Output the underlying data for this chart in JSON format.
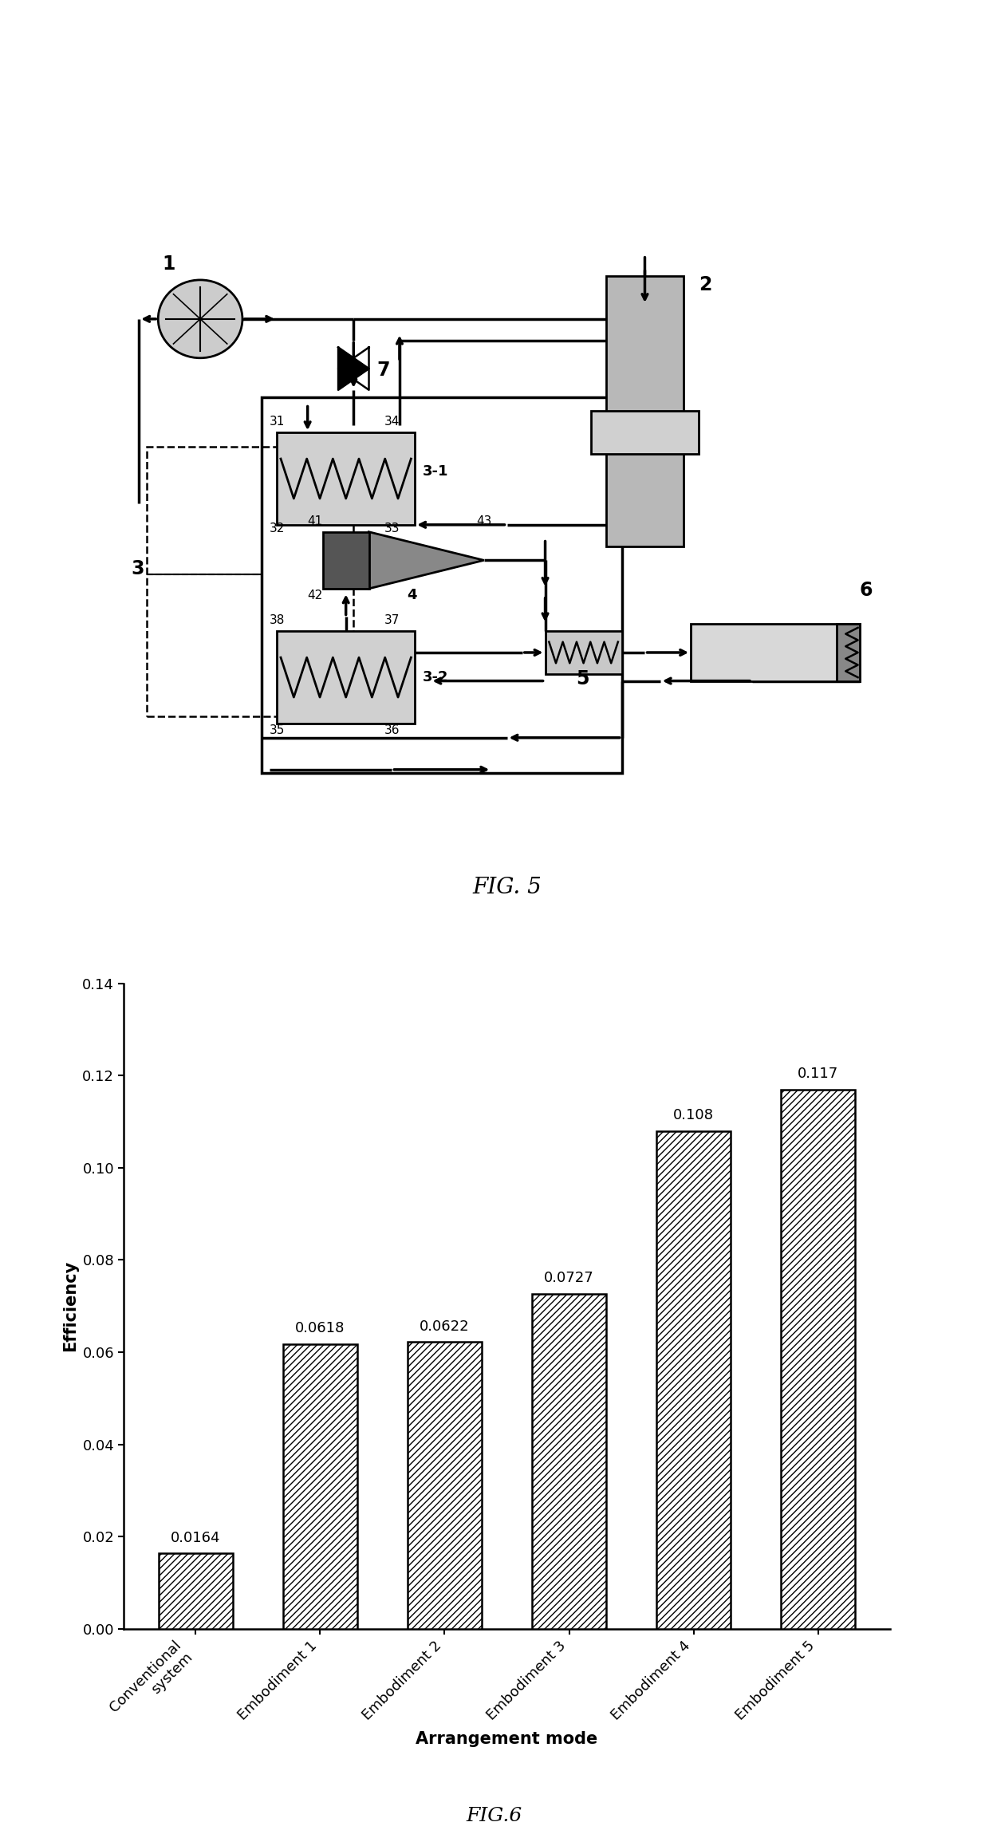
{
  "bar_categories": [
    "Conventional\nsystem",
    "Embodiment 1",
    "Embodiment 2",
    "Embodiment 3",
    "Embodiment 4",
    "Embodiment 5"
  ],
  "bar_values": [
    0.0164,
    0.0618,
    0.0622,
    0.0727,
    0.108,
    0.117
  ],
  "bar_labels": [
    "0.0164",
    "0.0618",
    "0.0622",
    "0.0727",
    "0.108",
    "0.117"
  ],
  "bar_color": "#ffffff",
  "bar_edgecolor": "#000000",
  "hatch": "////",
  "ylabel": "Efficiency",
  "xlabel": "Arrangement mode",
  "ylim": [
    0,
    0.14
  ],
  "yticks": [
    0.0,
    0.02,
    0.04,
    0.06,
    0.08,
    0.1,
    0.12,
    0.14
  ],
  "fig_label_top": "FIG. 5",
  "fig_label_bottom": "FIG.6",
  "fig_bgcolor": "#ffffff",
  "text_color": "#000000"
}
